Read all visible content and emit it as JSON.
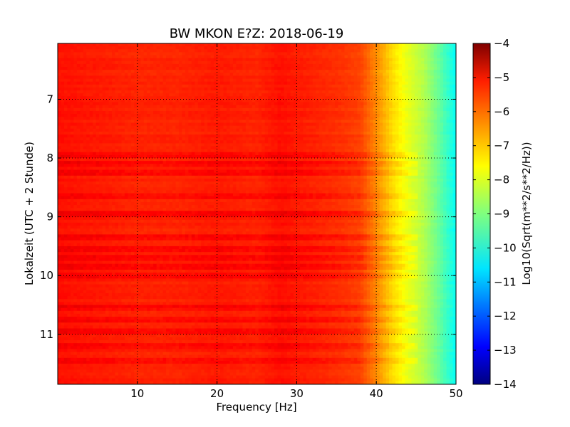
{
  "chart_data": {
    "type": "heatmap",
    "title": "BW MKON E?Z: 2018-06-19",
    "xlabel": "Frequency [Hz]",
    "ylabel": "Lokalzeit (UTC + 2 Stunde)",
    "xlim": [
      0,
      50
    ],
    "ylim": [
      6.05,
      11.85
    ],
    "y_inverted": true,
    "x_ticks": [
      10,
      20,
      30,
      40,
      50
    ],
    "y_ticks": [
      7,
      8,
      9,
      10,
      11
    ],
    "grid": true,
    "colorbar": {
      "label": "Log10(Sqrt(m**2/s**2/Hz))",
      "range": [
        -14,
        -4
      ],
      "ticks": [
        -4,
        -5,
        -6,
        -7,
        -8,
        -9,
        -10,
        -11,
        -12,
        -13,
        -14
      ],
      "colormap": "jet"
    },
    "spectral_profile": {
      "frequency_hz": [
        0,
        5,
        10,
        15,
        20,
        25,
        28,
        30,
        35,
        38,
        40,
        42,
        44,
        46,
        48,
        50
      ],
      "value": [
        -5.4,
        -5.5,
        -5.6,
        -5.6,
        -5.5,
        -5.6,
        -5.4,
        -5.5,
        -5.7,
        -5.9,
        -6.6,
        -7.4,
        -8.0,
        -8.5,
        -9.3,
        -10.2
      ]
    },
    "band_times": [
      7.95,
      8.1,
      8.25,
      8.65,
      8.95,
      9.35,
      9.55,
      9.7,
      9.85,
      10.0,
      10.55,
      10.75,
      10.95,
      11.2,
      11.45
    ]
  }
}
